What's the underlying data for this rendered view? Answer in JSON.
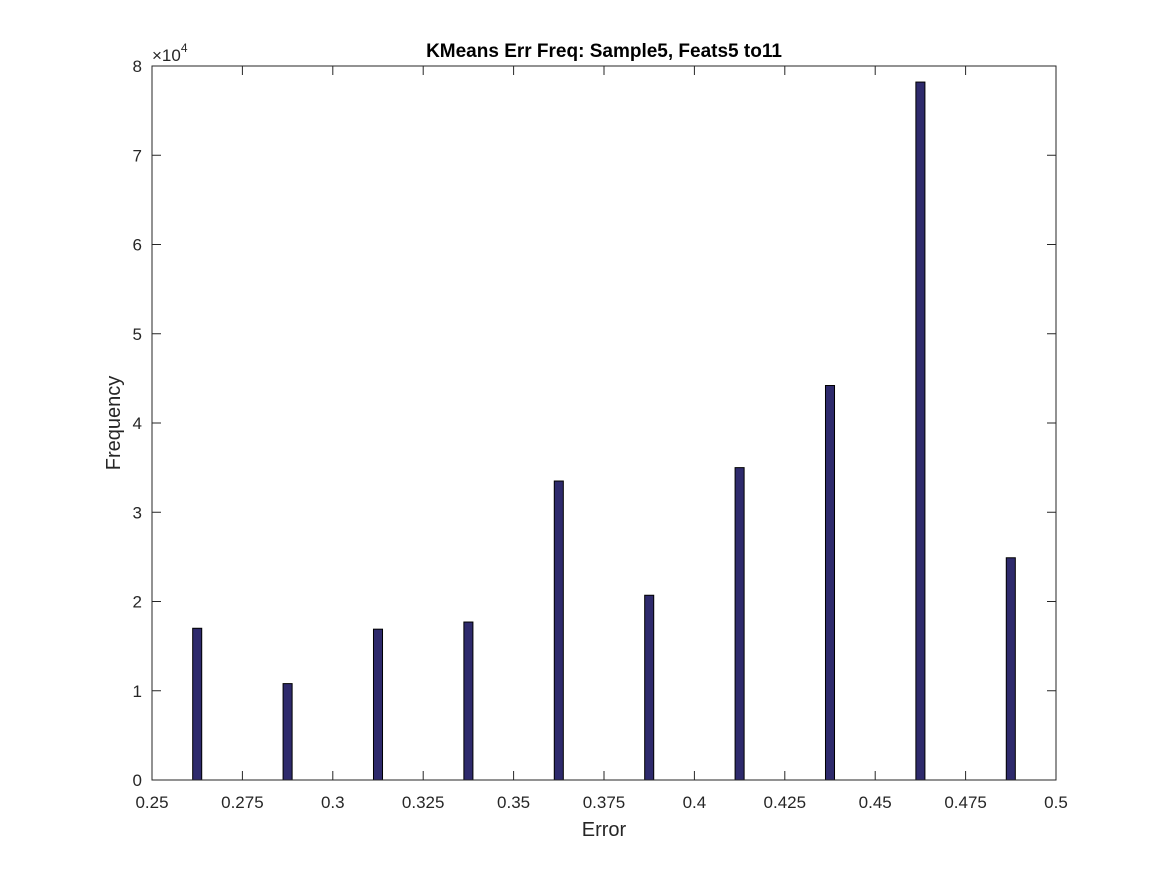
{
  "chart_data": {
    "type": "bar",
    "title": "KMeans Err Freq: Sample5, Feats5 to11",
    "xlabel": "Error",
    "ylabel": "Frequency",
    "xlim": [
      0.25,
      0.5
    ],
    "ylim": [
      0,
      80000
    ],
    "x_ticks": [
      "0.25",
      "0.275",
      "0.3",
      "0.325",
      "0.35",
      "0.375",
      "0.4",
      "0.425",
      "0.45",
      "0.475",
      "0.5"
    ],
    "y_ticks": [
      "0",
      "1",
      "2",
      "3",
      "4",
      "5",
      "6",
      "7",
      "8"
    ],
    "y_exponent": {
      "base": "×10",
      "power": "4"
    },
    "bar_width": 0.0025,
    "x": [
      0.2625,
      0.2875,
      0.3125,
      0.3375,
      0.3625,
      0.3875,
      0.4125,
      0.4375,
      0.4625,
      0.4875
    ],
    "values": [
      17000,
      10800,
      16900,
      17700,
      33500,
      20700,
      35000,
      44200,
      78200,
      24900
    ],
    "bar_color": "#2e2a6c",
    "bar_edge_color": "#000000",
    "grid": false,
    "box": true
  }
}
